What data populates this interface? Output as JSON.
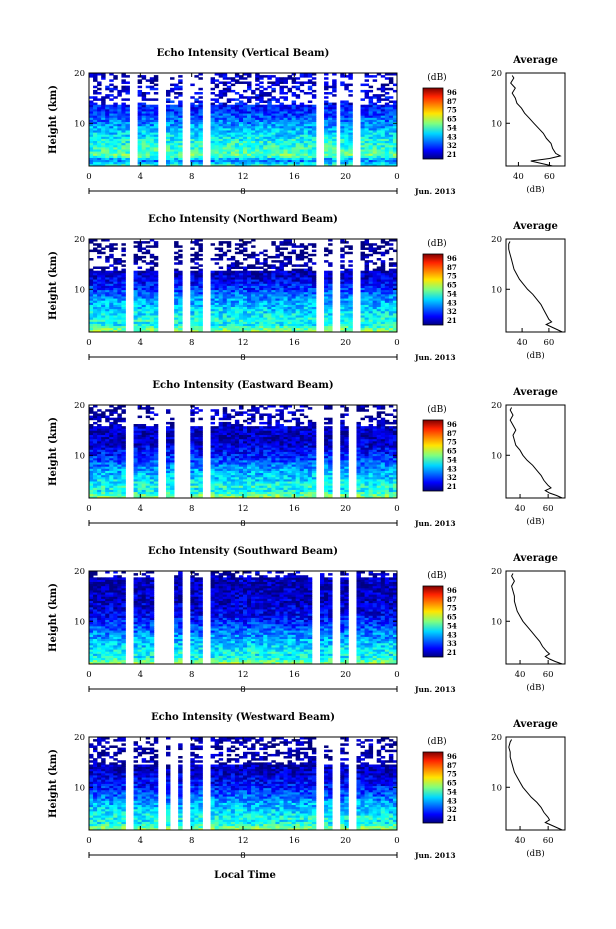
{
  "figure_xlabel": "Local Time",
  "chart_data": [
    {
      "type": "heatmap",
      "title": "Echo Intensity (Vertical Beam)",
      "ylabel": "Height (km)",
      "xlim": [
        0,
        24
      ],
      "ylim": [
        1.5,
        20
      ],
      "x_ticks": [
        "0",
        "4",
        "8",
        "12",
        "16",
        "20",
        "0"
      ],
      "y_ticks": [
        "10",
        "20"
      ],
      "day_label": "8",
      "date_label": "Jun. 2013",
      "colorbar": {
        "unit": "(dB)",
        "ticks": [
          "96",
          "87",
          "75",
          "65",
          "54",
          "43",
          "32",
          "21"
        ]
      },
      "gaps": [
        [
          3.2,
          3.55
        ],
        [
          5.6,
          5.95
        ],
        [
          7.3,
          7.7
        ],
        [
          9.1,
          9.45
        ],
        [
          17.9,
          18.3
        ],
        [
          19.3,
          19.55
        ],
        [
          20.6,
          20.9
        ]
      ],
      "cloud_top_km": 13.5,
      "profile": {
        "title": "Average",
        "xlabel": "(dB)",
        "x_ticks": [
          "40",
          "60"
        ],
        "y_ticks": [
          "10",
          "20"
        ],
        "xlim": [
          32,
          70
        ],
        "height_km": [
          1.5,
          2,
          2.5,
          3,
          3.5,
          4,
          5,
          6,
          7,
          8,
          9,
          10,
          11,
          12,
          13,
          14,
          15,
          16,
          17,
          18,
          19,
          19.5
        ],
        "values_db": [
          62,
          55,
          48,
          60,
          67,
          64,
          62,
          61,
          58,
          56,
          53,
          50,
          47,
          44,
          42,
          39,
          38,
          36,
          38,
          35,
          37,
          36
        ]
      }
    },
    {
      "type": "heatmap",
      "title": "Echo Intensity (Northward Beam)",
      "ylabel": "Height (km)",
      "xlim": [
        0,
        24
      ],
      "ylim": [
        1.5,
        20
      ],
      "x_ticks": [
        "0",
        "4",
        "8",
        "12",
        "16",
        "20",
        "0"
      ],
      "y_ticks": [
        "10",
        "20"
      ],
      "day_label": "8",
      "date_label": "Jun. 2013",
      "colorbar": {
        "unit": "(dB)",
        "ticks": [
          "96",
          "87",
          "75",
          "65",
          "54",
          "43",
          "32",
          "21"
        ]
      },
      "gaps": [
        [
          3.0,
          3.35
        ],
        [
          5.4,
          5.75
        ],
        [
          6.3,
          6.6
        ],
        [
          7.4,
          7.7
        ],
        [
          9.1,
          9.4
        ],
        [
          17.7,
          18.1
        ],
        [
          19.1,
          19.4
        ],
        [
          20.6,
          20.9
        ]
      ],
      "cloud_top_km": 13.5,
      "profile": {
        "title": "Average",
        "xlabel": "(dB)",
        "x_ticks": [
          "40",
          "60"
        ],
        "y_ticks": [
          "10",
          "20"
        ],
        "xlim": [
          28,
          72
        ],
        "height_km": [
          1.5,
          2,
          2.5,
          3,
          3.5,
          4,
          5,
          6,
          7,
          8,
          9,
          10,
          11,
          12,
          13,
          14,
          15,
          16,
          17,
          18,
          19,
          19.5
        ],
        "values_db": [
          70,
          66,
          62,
          58,
          62,
          60,
          58,
          56,
          54,
          51,
          48,
          44,
          41,
          38,
          36,
          34,
          33,
          32,
          31,
          30,
          30,
          31
        ]
      }
    },
    {
      "type": "heatmap",
      "title": "Echo Intensity (Eastward Beam)",
      "ylabel": "Height (km)",
      "xlim": [
        0,
        24
      ],
      "ylim": [
        1.5,
        20
      ],
      "x_ticks": [
        "0",
        "4",
        "8",
        "12",
        "16",
        "20",
        "0"
      ],
      "y_ticks": [
        "10",
        "20"
      ],
      "day_label": "8",
      "date_label": "Jun. 2013",
      "colorbar": {
        "unit": "(dB)",
        "ticks": [
          "96",
          "87",
          "75",
          "65",
          "54",
          "43",
          "32",
          "21"
        ]
      },
      "gaps": [
        [
          3.0,
          3.35
        ],
        [
          5.5,
          5.85
        ],
        [
          6.7,
          7.0
        ],
        [
          7.4,
          7.8
        ],
        [
          9.1,
          9.4
        ],
        [
          17.7,
          18.1
        ],
        [
          19.1,
          19.4
        ],
        [
          20.5,
          20.8
        ]
      ],
      "cloud_top_km": 15.5,
      "profile": {
        "title": "Average",
        "xlabel": "(dB)",
        "x_ticks": [
          "40",
          "60"
        ],
        "y_ticks": [
          "10",
          "20"
        ],
        "xlim": [
          30,
          72
        ],
        "height_km": [
          1.5,
          2,
          2.5,
          3,
          3.5,
          4,
          5,
          6,
          7,
          8,
          9,
          10,
          11,
          12,
          13,
          14,
          15,
          16,
          17,
          18,
          19,
          19.5
        ],
        "values_db": [
          70,
          66,
          61,
          58,
          62,
          60,
          57,
          55,
          52,
          49,
          45,
          42,
          40,
          37,
          36,
          35,
          37,
          35,
          33,
          35,
          33,
          34
        ]
      }
    },
    {
      "type": "heatmap",
      "title": "Echo Intensity (Southward Beam)",
      "ylabel": "Height (km)",
      "xlim": [
        0,
        24
      ],
      "ylim": [
        1.5,
        20
      ],
      "x_ticks": [
        "0",
        "4",
        "8",
        "12",
        "16",
        "20",
        "0"
      ],
      "y_ticks": [
        "10",
        "20"
      ],
      "day_label": "8",
      "date_label": "Jun. 2013",
      "colorbar": {
        "unit": "(dB)",
        "ticks": [
          "96",
          "87",
          "75",
          "65",
          "54",
          "43",
          "33",
          "21"
        ]
      },
      "gaps": [
        [
          3.0,
          3.35
        ],
        [
          5.3,
          5.7
        ],
        [
          6.3,
          6.6
        ],
        [
          7.4,
          7.8
        ],
        [
          9.1,
          9.4
        ],
        [
          17.6,
          18.0
        ],
        [
          19.0,
          19.3
        ],
        [
          20.5,
          20.8
        ]
      ],
      "cloud_top_km": 18.5,
      "profile": {
        "title": "Average",
        "xlabel": "(dB)",
        "x_ticks": [
          "40",
          "60"
        ],
        "y_ticks": [
          "10",
          "20"
        ],
        "xlim": [
          30,
          72
        ],
        "height_km": [
          1.5,
          2,
          2.5,
          3,
          3.5,
          4,
          5,
          6,
          7,
          8,
          9,
          10,
          11,
          12,
          13,
          14,
          15,
          16,
          17,
          18,
          19,
          19.5
        ],
        "values_db": [
          70,
          65,
          61,
          58,
          61,
          59,
          56,
          54,
          51,
          48,
          45,
          42,
          40,
          38,
          37,
          36,
          36,
          35,
          34,
          36,
          34,
          35
        ]
      }
    },
    {
      "type": "heatmap",
      "title": "Echo Intensity (Westward Beam)",
      "ylabel": "Height (km)",
      "xlim": [
        0,
        24
      ],
      "ylim": [
        1.5,
        20
      ],
      "x_ticks": [
        "0",
        "4",
        "8",
        "12",
        "16",
        "20",
        "0"
      ],
      "y_ticks": [
        "10",
        "20"
      ],
      "day_label": "8",
      "date_label": "Jun. 2013",
      "colorbar": {
        "unit": "(dB)",
        "ticks": [
          "96",
          "87",
          "75",
          "65",
          "54",
          "43",
          "32",
          "21"
        ]
      },
      "gaps": [
        [
          3.0,
          3.35
        ],
        [
          5.4,
          5.75
        ],
        [
          6.4,
          6.7
        ],
        [
          7.4,
          7.8
        ],
        [
          9.1,
          9.4
        ],
        [
          17.8,
          18.2
        ],
        [
          19.1,
          19.4
        ],
        [
          20.5,
          20.8
        ]
      ],
      "cloud_top_km": 14.5,
      "profile": {
        "title": "Average",
        "xlabel": "(dB)",
        "x_ticks": [
          "40",
          "60"
        ],
        "y_ticks": [
          "10",
          "20"
        ],
        "xlim": [
          30,
          72
        ],
        "height_km": [
          1.5,
          2,
          2.5,
          3,
          3.5,
          4,
          5,
          6,
          7,
          8,
          9,
          10,
          11,
          12,
          13,
          14,
          15,
          16,
          17,
          18,
          19,
          19.5
        ],
        "values_db": [
          70,
          66,
          62,
          58,
          61,
          60,
          57,
          55,
          52,
          48,
          45,
          42,
          40,
          38,
          36,
          35,
          34,
          33,
          33,
          32,
          33,
          34
        ]
      }
    }
  ]
}
